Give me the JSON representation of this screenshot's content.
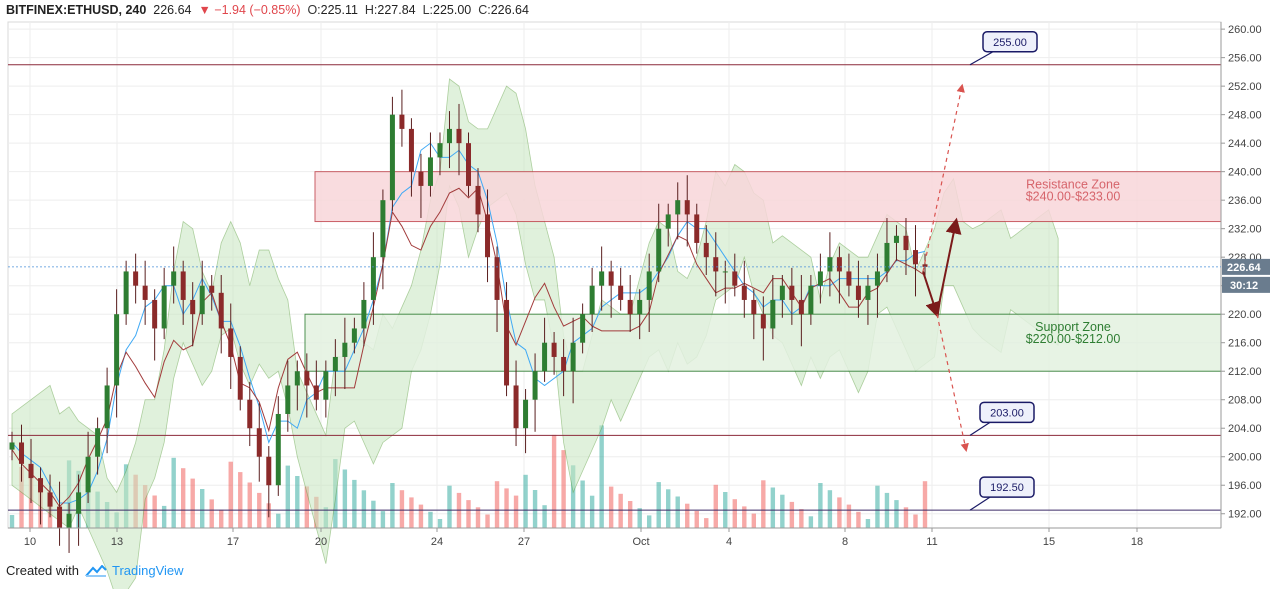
{
  "header": {
    "symbol": "BITFINEX:ETHUSD, 240",
    "last": "226.64",
    "change": "−1.94 (−0.85%)",
    "o_label": "O:",
    "o": "225.11",
    "h_label": "H:",
    "h": "227.84",
    "l_label": "L:",
    "l": "225.00",
    "c_label": "C:",
    "c": "226.64"
  },
  "footer": {
    "created_with": "Created with",
    "brand": "TradingView"
  },
  "colors": {
    "up": "#26a69a",
    "down": "#ef5350",
    "candle_body": "#8b2a2a",
    "resistance_fill": "#f8d7da",
    "resistance_line": "#c0434b",
    "support_fill": "#e3f1e0",
    "support_line": "#2e7d32",
    "kumo_bull": "#c8e6c0",
    "kumo_bear": "#fde3c2",
    "arrow": "#7b1a1a",
    "price_tag": "#4a90d9"
  },
  "chart_data": {
    "type": "candlestick",
    "title": "",
    "ylim": [
      190,
      261
    ],
    "y_ticks": [
      "260.00",
      "256.00",
      "252.00",
      "248.00",
      "244.00",
      "240.00",
      "236.00",
      "232.00",
      "228.00",
      "224.00",
      "220.00",
      "216.00",
      "212.00",
      "208.00",
      "204.00",
      "200.00",
      "196.00",
      "192.00"
    ],
    "x_ticks": [
      "10",
      "13",
      "17",
      "20",
      "24",
      "27",
      "Oct",
      "4",
      "8",
      "11",
      "15",
      "18"
    ],
    "last_price": "226.64",
    "countdown": "30:12",
    "zones": [
      {
        "name": "Resistance Zone",
        "range_label": "$240.00-$233.00",
        "high": 240.0,
        "low": 233.0
      },
      {
        "name": "Support Zone",
        "range_label": "$220.00-$212.00",
        "high": 220.0,
        "low": 212.0
      }
    ],
    "horizontal_levels": [
      {
        "label": "255.00",
        "value": 255.0
      },
      {
        "label": "203.00",
        "value": 203.0
      },
      {
        "label": "192.50",
        "value": 192.5
      }
    ],
    "projection_points": [
      {
        "x": "Oct 10",
        "y": 226.0
      },
      {
        "x": "Oct 11",
        "y": 220.0
      },
      {
        "x": "Oct 12",
        "y": 233.0
      }
    ],
    "candles_close": [
      202,
      199,
      197,
      195,
      193,
      190,
      192,
      195,
      200,
      204,
      210,
      220,
      226,
      224,
      222,
      218,
      224,
      226,
      222,
      220,
      224,
      223,
      218,
      214,
      208,
      204,
      200,
      196,
      206,
      210,
      212,
      210,
      208,
      212,
      214,
      216,
      218,
      222,
      228,
      236,
      248,
      246,
      240,
      238,
      242,
      244,
      246,
      244,
      238,
      234,
      228,
      222,
      210,
      204,
      208,
      212,
      216,
      214,
      212,
      216,
      220,
      224,
      226,
      224,
      222,
      220,
      222,
      226,
      232,
      234,
      236,
      234,
      230,
      228,
      226,
      226,
      224,
      222,
      220,
      218,
      222,
      224,
      222,
      220,
      224,
      226,
      228,
      226,
      224,
      222,
      224,
      226,
      230,
      231,
      229,
      227,
      226.64
    ],
    "volume_pattern": "spike on Oct 1, tapering afterwards"
  }
}
